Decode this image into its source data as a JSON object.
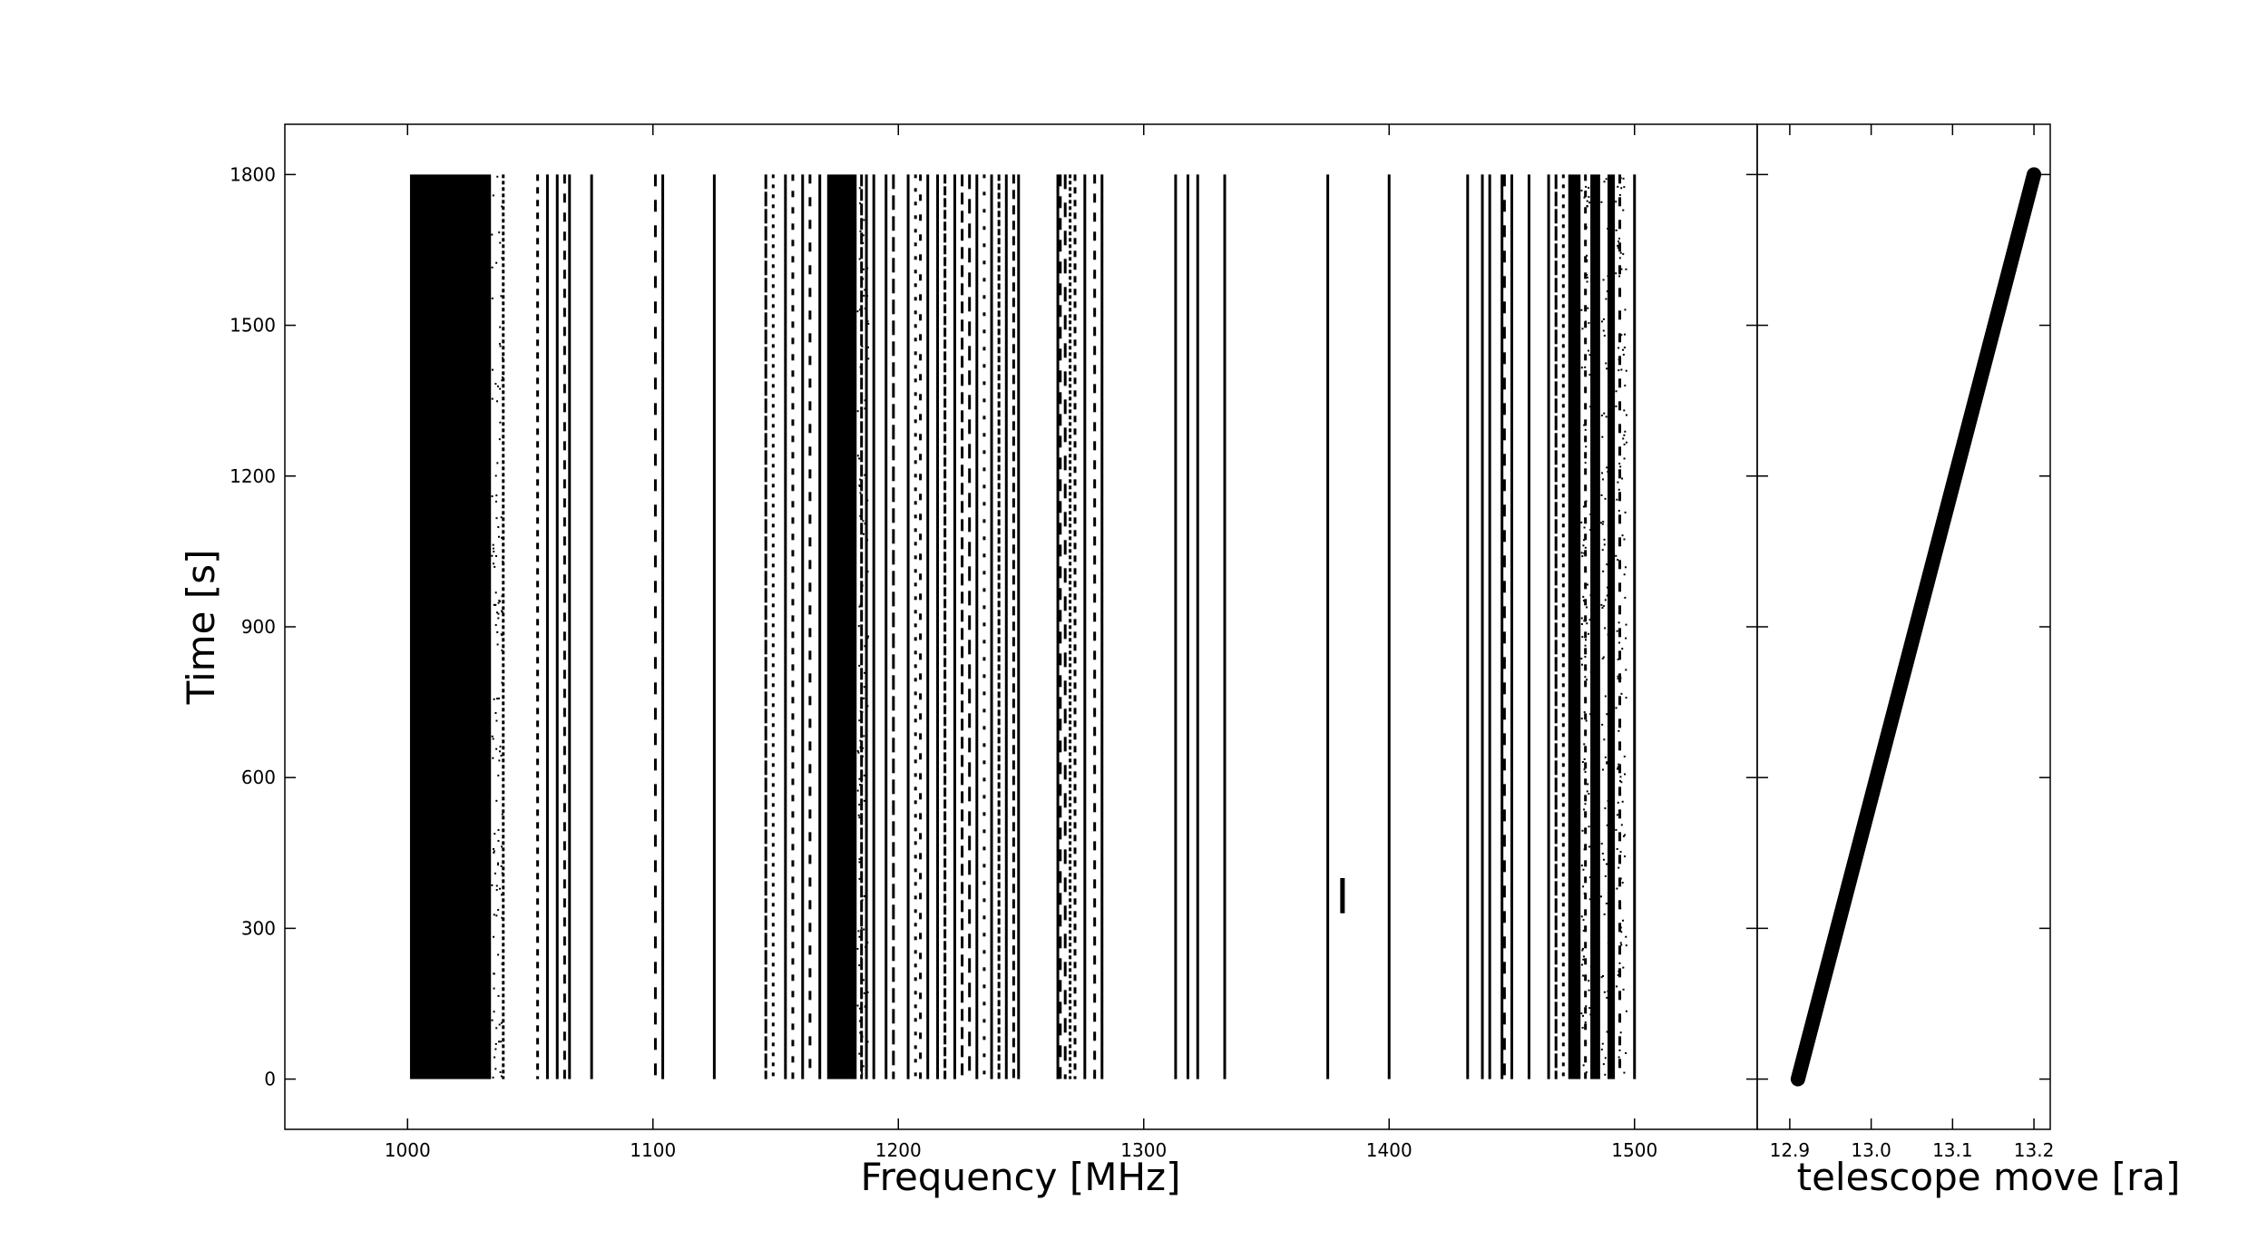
{
  "chart_data": [
    {
      "type": "scatter",
      "title": "",
      "xlabel": "Frequency [MHz]",
      "ylabel": "Time [s]",
      "xlim": [
        950,
        1550
      ],
      "ylim": [
        -100,
        1900
      ],
      "xticks": [
        1000,
        1100,
        1200,
        1300,
        1400,
        1500
      ],
      "yticks": [
        0,
        300,
        600,
        900,
        1200,
        1500,
        1800
      ],
      "marker_color": "#000000",
      "grid": false,
      "dense_bands": [
        {
          "x0": 1001,
          "x1": 1034,
          "t0": 0,
          "t1": 1800
        },
        {
          "x0": 1171,
          "x1": 1183,
          "t0": 0,
          "t1": 1800
        },
        {
          "x0": 1473,
          "x1": 1478,
          "t0": 0,
          "t1": 1800
        },
        {
          "x0": 1482,
          "x1": 1486,
          "t0": 0,
          "t1": 1800
        },
        {
          "x0": 1489,
          "x1": 1492,
          "t0": 0,
          "t1": 1800
        }
      ],
      "solid_lines": [
        1057,
        1061,
        1066,
        1075,
        1104,
        1125,
        1154,
        1161,
        1168,
        1187,
        1190,
        1195,
        1204,
        1212,
        1216,
        1223,
        1232,
        1238,
        1244,
        1249,
        1265,
        1276,
        1283,
        1313,
        1318,
        1322,
        1333,
        1375,
        1400,
        1432,
        1438,
        1441,
        1446,
        1450,
        1457,
        1465,
        1500
      ],
      "broken_lines": [
        1039,
        1053,
        1064,
        1101,
        1146,
        1149,
        1157,
        1164,
        1185,
        1198,
        1207,
        1209,
        1219,
        1226,
        1229,
        1235,
        1241,
        1247,
        1266,
        1268,
        1270,
        1272,
        1280,
        1447,
        1468,
        1471,
        1480,
        1494
      ],
      "segments": [
        {
          "x": 1381,
          "t0": 330,
          "t1": 400
        }
      ]
    },
    {
      "type": "scatter",
      "title": "",
      "xlabel": "telescope move [ra]",
      "ylabel": "",
      "xlim": [
        12.86,
        13.22
      ],
      "ylim": [
        -100,
        1900
      ],
      "xticks": [
        "12.9",
        "13.0",
        "13.1",
        "13.2"
      ],
      "marker_color": "#000000",
      "grid": false,
      "x": [
        12.91,
        13.2
      ],
      "y": [
        0,
        1800
      ]
    }
  ],
  "left_axis": {
    "yticks_text": [
      "0",
      "300",
      "600",
      "900",
      "1200",
      "1500",
      "1800"
    ],
    "xticks_text": [
      "1000",
      "1100",
      "1200",
      "1300",
      "1400",
      "1500"
    ],
    "xlabel": "Frequency [MHz]",
    "ylabel": "Time [s]"
  },
  "right_axis": {
    "xticks_text": [
      "12.9",
      "13.0",
      "13.1",
      "13.2"
    ],
    "xlabel": "telescope move [ra]"
  }
}
